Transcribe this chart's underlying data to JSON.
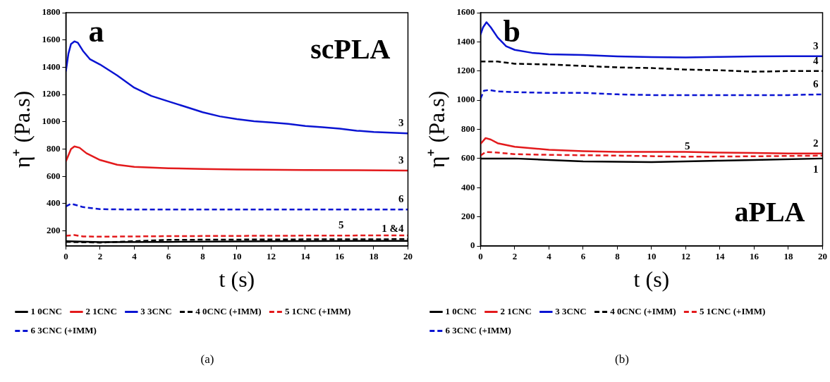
{
  "chart_data": [
    {
      "type": "line",
      "xlabel": "t (s)",
      "ylabel": "η⁺ (Pa.s)",
      "xlim": [
        0,
        20
      ],
      "xticks": [
        0,
        2,
        4,
        6,
        8,
        10,
        12,
        14,
        16,
        18,
        20
      ],
      "ylim": [
        90,
        1800
      ],
      "yticks": [
        200,
        400,
        600,
        800,
        1000,
        1200,
        1400,
        1600,
        1800
      ],
      "grid": false,
      "legend": "bottom",
      "marker": "none",
      "series": [
        {
          "name": "1 0CNC",
          "color": "#000000",
          "line_style": "solid",
          "x": [
            0,
            2,
            6,
            12,
            20
          ],
          "values": [
            125,
            118,
            120,
            125,
            128
          ]
        },
        {
          "name": "2 1CNC",
          "color": "#e31a1c",
          "line_style": "solid",
          "x": [
            0,
            0.3,
            0.5,
            0.8,
            1.2,
            2,
            3,
            4,
            6,
            8,
            10,
            14,
            20
          ],
          "values": [
            710,
            800,
            820,
            810,
            770,
            720,
            685,
            670,
            660,
            655,
            650,
            647,
            643
          ]
        },
        {
          "name": "3 3CNC",
          "color": "#0a14d2",
          "line_style": "solid",
          "x": [
            0,
            0.15,
            0.3,
            0.5,
            0.7,
            1,
            1.4,
            2,
            3,
            4,
            5,
            6,
            7,
            8,
            9,
            10,
            11,
            12,
            13,
            14,
            15,
            16,
            17,
            18,
            19,
            20
          ],
          "values": [
            1370,
            1500,
            1570,
            1590,
            1580,
            1520,
            1460,
            1420,
            1340,
            1250,
            1190,
            1150,
            1110,
            1070,
            1040,
            1020,
            1005,
            995,
            985,
            970,
            960,
            950,
            935,
            925,
            920,
            915
          ]
        },
        {
          "name": "4 0CNC (+IMM)",
          "color": "#000000",
          "line_style": "dashed",
          "x": [
            0,
            2,
            6,
            12,
            20
          ],
          "values": [
            120,
            115,
            135,
            138,
            140
          ]
        },
        {
          "name": "5 1CNC (+IMM)",
          "color": "#e31a1c",
          "line_style": "dashed",
          "x": [
            0,
            0.5,
            1,
            2,
            6,
            12,
            20
          ],
          "values": [
            165,
            170,
            160,
            158,
            162,
            165,
            168
          ]
        },
        {
          "name": "6 3CNC (+IMM)",
          "color": "#0a14d2",
          "line_style": "dashed",
          "x": [
            0,
            0.3,
            0.6,
            1,
            2,
            4,
            10,
            20
          ],
          "values": [
            380,
            400,
            390,
            375,
            360,
            357,
            357,
            357
          ]
        }
      ],
      "annotations": [
        "a",
        "scPLA",
        "(a)",
        {
          "text": "3",
          "x": 20,
          "y": 915
        },
        {
          "text": "3",
          "x": 20,
          "y": 643
        },
        {
          "text": "6",
          "x": 20,
          "y": 357
        },
        {
          "text": "5",
          "x": 16,
          "y": 165
        },
        {
          "text": "1 &4",
          "x": 20,
          "y": 140
        }
      ]
    },
    {
      "type": "line",
      "xlabel": "t (s)",
      "ylabel": "η⁺ (Pa.s)",
      "xlim": [
        0,
        20
      ],
      "xticks": [
        0,
        2,
        4,
        6,
        8,
        10,
        12,
        14,
        16,
        18,
        20
      ],
      "ylim": [
        0,
        1600
      ],
      "yticks": [
        0,
        200,
        400,
        600,
        800,
        1000,
        1200,
        1400,
        1600
      ],
      "grid": false,
      "legend": "bottom",
      "marker": "none",
      "series": [
        {
          "name": "1 0CNC",
          "color": "#000000",
          "line_style": "solid",
          "x": [
            0,
            2,
            4,
            6,
            8,
            10,
            12,
            14,
            16,
            20
          ],
          "values": [
            600,
            600,
            590,
            580,
            578,
            575,
            580,
            585,
            590,
            600
          ]
        },
        {
          "name": "2 1CNC",
          "color": "#e31a1c",
          "line_style": "solid",
          "x": [
            0,
            0.3,
            0.6,
            1,
            2,
            4,
            6,
            8,
            10,
            12,
            14,
            16,
            18,
            20
          ],
          "values": [
            700,
            740,
            730,
            705,
            680,
            660,
            650,
            645,
            645,
            645,
            640,
            638,
            635,
            635
          ]
        },
        {
          "name": "3 3CNC",
          "color": "#0a14d2",
          "line_style": "solid",
          "x": [
            0,
            0.15,
            0.35,
            0.6,
            1,
            1.5,
            2,
            3,
            4,
            6,
            8,
            10,
            12,
            14,
            16,
            18,
            20
          ],
          "values": [
            1450,
            1500,
            1535,
            1500,
            1430,
            1370,
            1345,
            1325,
            1315,
            1310,
            1300,
            1295,
            1293,
            1297,
            1300,
            1302,
            1302
          ]
        },
        {
          "name": "4 0CNC (+IMM)",
          "color": "#000000",
          "line_style": "dashed",
          "x": [
            0,
            1,
            2,
            4,
            6,
            8,
            10,
            12,
            14,
            16,
            18,
            20
          ],
          "values": [
            1265,
            1265,
            1250,
            1245,
            1235,
            1225,
            1220,
            1210,
            1205,
            1195,
            1200,
            1200
          ]
        },
        {
          "name": "5 1CNC (+IMM)",
          "color": "#e31a1c",
          "line_style": "dashed",
          "x": [
            0,
            0.3,
            1,
            2,
            4,
            8,
            12,
            16,
            20
          ],
          "values": [
            620,
            645,
            640,
            630,
            625,
            620,
            612,
            615,
            620
          ]
        },
        {
          "name": "6 3CNC (+IMM)",
          "color": "#0a14d2",
          "line_style": "dashed",
          "x": [
            0,
            0.2,
            0.5,
            1,
            2,
            4,
            6,
            8,
            10,
            12,
            14,
            16,
            18,
            20
          ],
          "values": [
            1010,
            1065,
            1070,
            1060,
            1055,
            1050,
            1050,
            1040,
            1035,
            1035,
            1035,
            1035,
            1035,
            1040
          ]
        }
      ],
      "annotations": [
        "b",
        "aPLA",
        "(b)",
        {
          "text": "3",
          "x": 20,
          "y": 1302
        },
        {
          "text": "4",
          "x": 20,
          "y": 1200
        },
        {
          "text": "6",
          "x": 20,
          "y": 1040
        },
        {
          "text": "2",
          "x": 20,
          "y": 635
        },
        {
          "text": "5",
          "x": 12,
          "y": 612
        },
        {
          "text": "1",
          "x": 20,
          "y": 600
        }
      ]
    }
  ]
}
